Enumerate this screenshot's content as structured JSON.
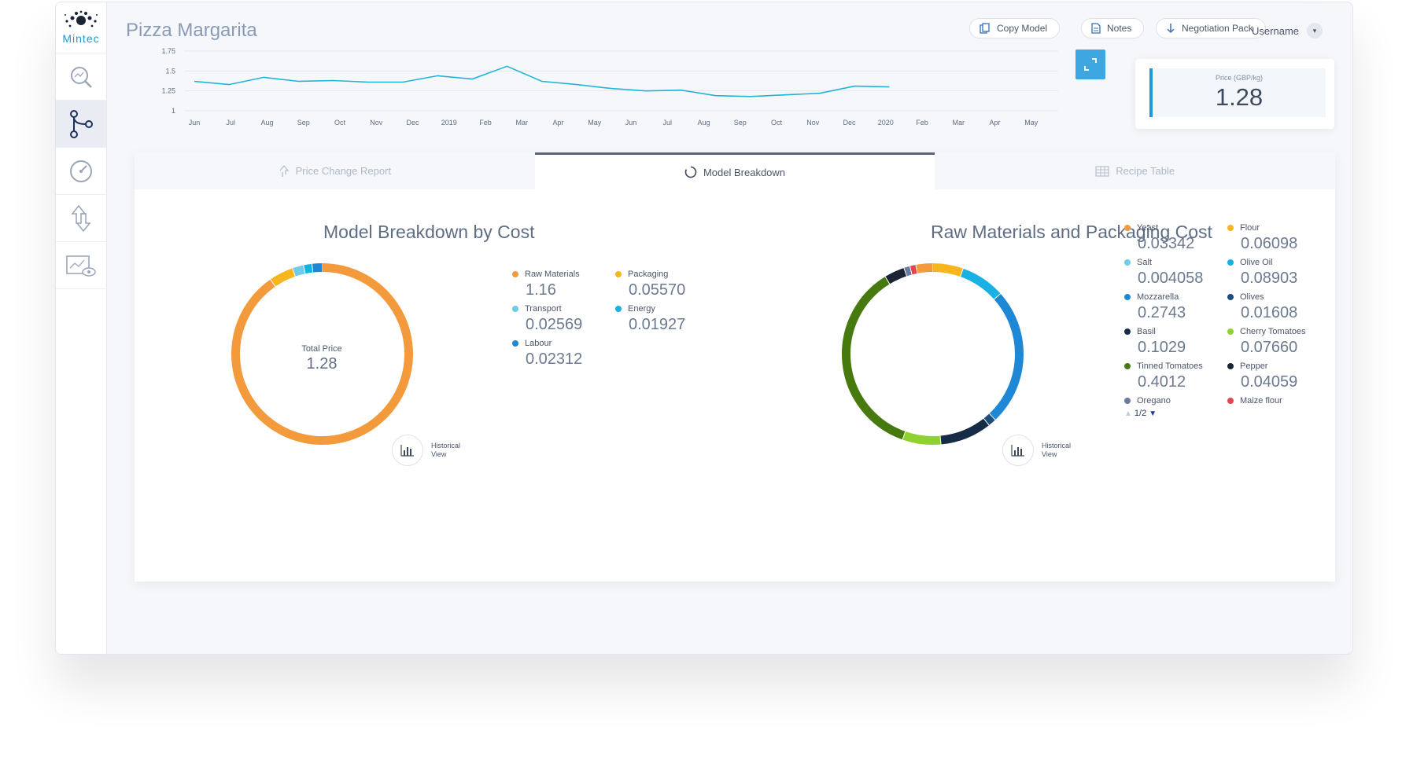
{
  "app": {
    "logo_text": "Mintec"
  },
  "sidebar": {
    "items": [
      {
        "icon": "search-icon"
      },
      {
        "icon": "model-tree-icon"
      },
      {
        "icon": "gauge-icon"
      },
      {
        "icon": "up-down-arrows-icon"
      },
      {
        "icon": "chart-eye-icon"
      }
    ]
  },
  "header": {
    "title": "Pizza Margarita",
    "copy_model": "Copy Model",
    "notes": "Notes",
    "negotiation_pack": "Negotiation Pack",
    "username": "Username"
  },
  "price_card": {
    "label": "Price (GBP/kg)",
    "value": "1.28"
  },
  "tabs": [
    {
      "label": "Price Change Report",
      "icon": "price-change-icon"
    },
    {
      "label": "Model Breakdown",
      "icon": "spinner-icon"
    },
    {
      "label": "Recipe Table",
      "icon": "table-icon"
    }
  ],
  "colors": {
    "accent": "#1a9ad6",
    "line": "#21b4d7"
  },
  "chart_data": [
    {
      "type": "line",
      "title": "",
      "ylim": [
        1,
        1.75
      ],
      "yticks": [
        "1.75",
        "1.5",
        "1.25",
        "1"
      ],
      "xticks": [
        "Jun",
        "Jul",
        "Aug",
        "Sep",
        "Oct",
        "Nov",
        "Dec",
        "2019",
        "Feb",
        "Mar",
        "Apr",
        "May",
        "Jun",
        "Jul",
        "Aug",
        "Sep",
        "Oct",
        "Nov",
        "Dec",
        "2020",
        "Feb",
        "Mar",
        "Apr",
        "May"
      ],
      "series": [
        {
          "values": [
            1.37,
            1.33,
            1.42,
            1.37,
            1.38,
            1.36,
            1.36,
            1.44,
            1.4,
            1.56,
            1.37,
            1.33,
            1.28,
            1.25,
            1.26,
            1.19,
            1.18,
            1.2,
            1.22,
            1.31,
            1.3
          ]
        }
      ]
    },
    {
      "type": "pie",
      "title": "Model Breakdown by Cost",
      "center_label": "Total Price",
      "center_value": "1.28",
      "slices": [
        {
          "name": "Raw Materials",
          "value": "1.16",
          "color": "#f39a3c"
        },
        {
          "name": "Packaging",
          "value": "0.05570",
          "color": "#f7b51e"
        },
        {
          "name": "Transport",
          "value": "0.02569",
          "color": "#6fcbe7"
        },
        {
          "name": "Energy",
          "value": "0.01927",
          "color": "#19b0e3"
        },
        {
          "name": "Labour",
          "value": "0.02312",
          "color": "#1e87d6"
        }
      ],
      "historical_label": "Historical View"
    },
    {
      "type": "pie",
      "title": "Raw Materials and Packaging Cost",
      "slices": [
        {
          "name": "Yeast",
          "value": "0.03342",
          "color": "#f39a3c"
        },
        {
          "name": "Flour",
          "value": "0.06098",
          "color": "#f7b51e"
        },
        {
          "name": "Salt",
          "value": "0.004058",
          "color": "#6fcbe7"
        },
        {
          "name": "Olive Oil",
          "value": "0.08903",
          "color": "#19b0e3"
        },
        {
          "name": "Mozzarella",
          "value": "0.2743",
          "color": "#1e87d6"
        },
        {
          "name": "Olives",
          "value": "0.01608",
          "color": "#1e4d7a"
        },
        {
          "name": "Basil",
          "value": "0.1029",
          "color": "#162b45"
        },
        {
          "name": "Cherry Tomatoes",
          "value": "0.07660",
          "color": "#8fd12f"
        },
        {
          "name": "Tinned Tomatoes",
          "value": "0.4012",
          "color": "#467a0f"
        },
        {
          "name": "Pepper",
          "value": "0.04059",
          "color": "#1b2435"
        },
        {
          "name": "Oregano",
          "value": "",
          "color": "#6a7aa0"
        },
        {
          "name": "Maize flour",
          "value": "",
          "color": "#e0474f"
        }
      ],
      "pager": "1/2",
      "historical_label": "Historical View"
    }
  ]
}
